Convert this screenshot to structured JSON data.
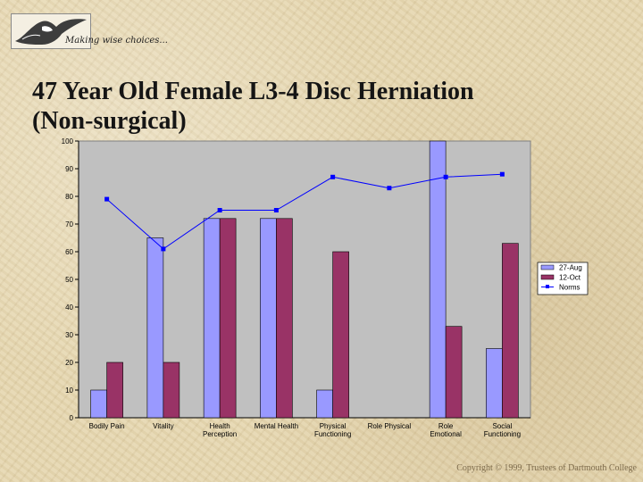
{
  "header": {
    "tagline": "Making wise choices..."
  },
  "title_line1": "47 Year Old Female L3-4 Disc Herniation",
  "title_line2": "(Non-surgical)",
  "footer": {
    "copyright": "Copyright © 1999, Trustees of Dartmouth College"
  },
  "colors": {
    "plot_bg": "#c0c0c0",
    "series1": "#9999ff",
    "series2": "#993366",
    "series3": "#0000ff"
  },
  "chart_data": {
    "type": "bar",
    "categories": [
      [
        "Bodily Pain"
      ],
      [
        "Vitality"
      ],
      [
        "Health",
        "Perception"
      ],
      [
        "Mental Health"
      ],
      [
        "Physical",
        "Functioning"
      ],
      [
        "Role Physical"
      ],
      [
        "Role",
        "Emotional"
      ],
      [
        "Social",
        "Functioning"
      ]
    ],
    "ylim": [
      0,
      100
    ],
    "yticks": [
      0,
      10,
      20,
      30,
      40,
      50,
      60,
      70,
      80,
      90,
      100
    ],
    "legend_position": "right",
    "series": [
      {
        "name": "27-Aug",
        "kind": "bar",
        "values": [
          10,
          65,
          72,
          72,
          10,
          0,
          100,
          25
        ]
      },
      {
        "name": "12-Oct",
        "kind": "bar",
        "values": [
          20,
          20,
          72,
          72,
          60,
          0,
          33,
          63
        ]
      },
      {
        "name": "Norms",
        "kind": "line",
        "values": [
          79,
          61,
          75,
          75,
          87,
          83,
          87,
          88
        ]
      }
    ]
  }
}
